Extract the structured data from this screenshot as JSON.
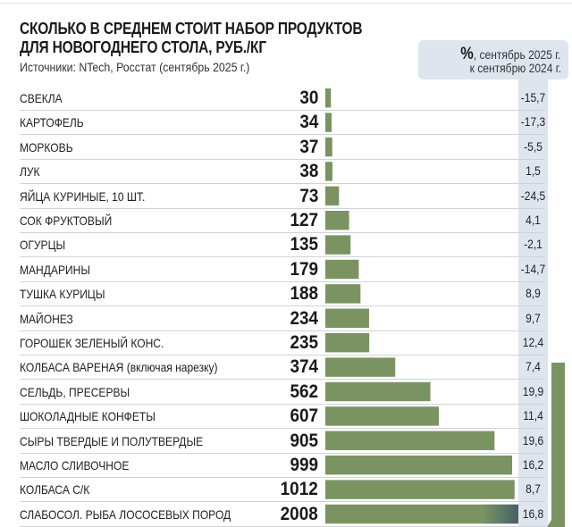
{
  "chart_data": {
    "type": "bar",
    "orientation": "horizontal",
    "title": "СКОЛЬКО В СРЕДНЕМ СТОИТ НАБОР ПРОДУКТОВ ДЛЯ НОВОГОДНЕГО СТОЛА, РУБ./КГ",
    "title_lines": [
      "СКОЛЬКО В СРЕДНЕМ СТОИТ НАБОР ПРОДУКТОВ",
      "ДЛЯ НОВОГОДНЕГО СТОЛА, РУБ./КГ"
    ],
    "subtitle": "Источники: NTech, Росстат (сентябрь 2025 г.)",
    "change_header": {
      "symbol": "%",
      "line1": ", сентябрь 2025 г.",
      "line2": "к сентябрю 2024 г."
    },
    "bar_color": "#7a9461",
    "column_color": "#dfe5ee",
    "grid": false,
    "categories": [
      "СВЕКЛА",
      "КАРТОФЕЛЬ",
      "МОРКОВЬ",
      "ЛУК",
      "ЯЙЦА КУРИНЫЕ, 10 ШТ.",
      "СОК ФРУКТОВЫЙ",
      "ОГУРЦЫ",
      "МАНДАРИНЫ",
      "ТУШКА КУРИЦЫ",
      "МАЙОНЕЗ",
      "ГОРОШЕК ЗЕЛЕНЫЙ КОНС.",
      "КОЛБАСА ВАРЕНАЯ (включая нарезку)",
      "СЕЛЬДЬ, ПРЕСЕРВЫ",
      "ШОКОЛАДНЫЕ КОНФЕТЫ",
      "СЫРЫ ТВЕРДЫЕ И ПОЛУТВЕРДЫЕ",
      "МАСЛО СЛИВОЧНОЕ",
      "КОЛБАСА С/К",
      "СЛАБОСОЛ. РЫБА ЛОСОСЕВЫХ ПОРОД"
    ],
    "values": [
      30,
      34,
      37,
      38,
      73,
      127,
      135,
      179,
      188,
      234,
      235,
      374,
      562,
      607,
      905,
      999,
      1012,
      2008
    ],
    "value_labels": [
      "30",
      "34",
      "37",
      "38",
      "73",
      "127",
      "135",
      "179",
      "188",
      "234",
      "235",
      "374",
      "562",
      "607",
      "905",
      "999",
      "1012",
      "2008"
    ],
    "change_labels": [
      "-15,7",
      "-17,3",
      "-5,5",
      "1,5",
      "-24,5",
      "4,1",
      "-2,1",
      "-14,7",
      "8,9",
      "9,7",
      "12,4",
      "7,4",
      "19,9",
      "11,4",
      "19,6",
      "16,2",
      "8,7",
      "16,8"
    ],
    "change_values": [
      -15.7,
      -17.3,
      -5.5,
      1.5,
      -24.5,
      4.1,
      -2.1,
      -14.7,
      8.9,
      9.7,
      12.4,
      7.4,
      19.9,
      11.4,
      19.6,
      16.2,
      8.7,
      16.8
    ],
    "xlim": [
      0,
      2008
    ]
  }
}
